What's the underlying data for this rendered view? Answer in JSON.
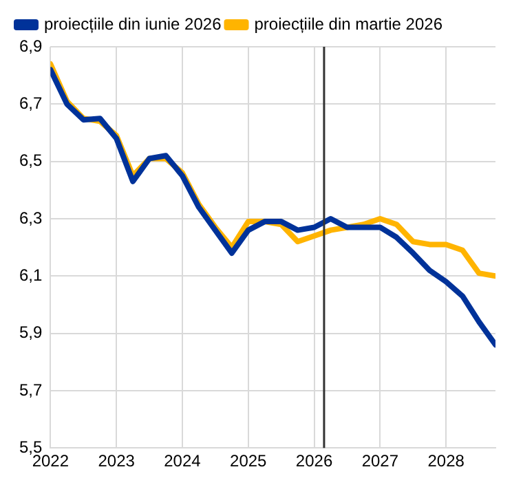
{
  "chart_data": {
    "type": "line",
    "x": [
      2022,
      2022.25,
      2022.5,
      2022.75,
      2023,
      2023.25,
      2023.5,
      2023.75,
      2024,
      2024.25,
      2024.5,
      2024.75,
      2025,
      2025.25,
      2025.5,
      2025.75,
      2026,
      2026.25,
      2026.5,
      2026.75,
      2027,
      2027.25,
      2027.5,
      2027.75,
      2028,
      2028.25,
      2028.5,
      2028.75
    ],
    "series": [
      {
        "name": "proiecțiile din iunie 2026",
        "color": "#003299",
        "values": [
          6.82,
          6.7,
          6.645,
          6.65,
          6.58,
          6.43,
          6.51,
          6.52,
          6.45,
          6.34,
          6.26,
          6.18,
          6.26,
          6.29,
          6.29,
          6.26,
          6.27,
          6.3,
          6.27,
          6.27,
          6.27,
          6.235,
          6.18,
          6.12,
          6.08,
          6.03,
          5.94,
          5.86
        ]
      },
      {
        "name": "proiecțiile din martie 2026",
        "color": "#ffb400",
        "values": [
          6.84,
          6.71,
          6.65,
          6.64,
          6.59,
          6.45,
          6.51,
          6.51,
          6.46,
          6.35,
          6.27,
          6.2,
          6.29,
          6.29,
          6.28,
          6.22,
          6.24,
          6.26,
          6.27,
          6.28,
          6.3,
          6.28,
          6.22,
          6.21,
          6.21,
          6.19,
          6.11,
          6.1
        ]
      }
    ],
    "xlim": [
      2022,
      2028.75
    ],
    "xticks": [
      2022,
      2023,
      2024,
      2025,
      2026,
      2027,
      2028
    ],
    "ylim": [
      5.5,
      6.9
    ],
    "yticks": [
      {
        "value": 5.5,
        "label": "5,5"
      },
      {
        "value": 5.7,
        "label": "5,7"
      },
      {
        "value": 5.9,
        "label": "5,9"
      },
      {
        "value": 6.1,
        "label": "6,1"
      },
      {
        "value": 6.3,
        "label": "6,3"
      },
      {
        "value": 6.5,
        "label": "6,5"
      },
      {
        "value": 6.7,
        "label": "6,7"
      },
      {
        "value": 6.9,
        "label": "6,9"
      }
    ],
    "ref_lines": [
      {
        "axis": "x",
        "value": 2026.15,
        "color": "#333333"
      }
    ],
    "grid": true,
    "legend": "top left",
    "marker": "none",
    "line_style": "solid"
  }
}
